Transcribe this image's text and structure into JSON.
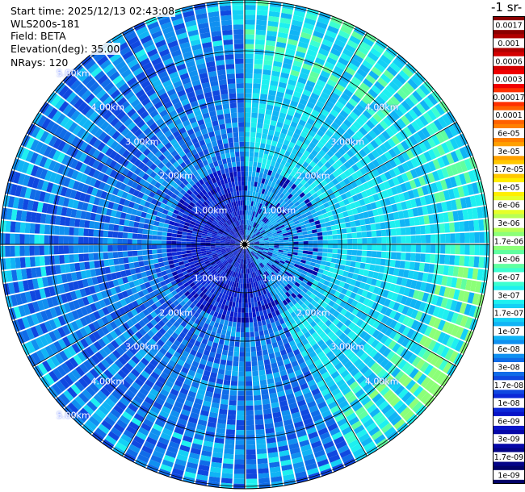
{
  "header": {
    "start_time": "Start time: 2025/12/13 02:43:08",
    "instrument": "WLS200s-181",
    "field": "Field: BETA",
    "elevation": "Elevation(deg): 35.00",
    "nrays": "NRays: 120"
  },
  "chart_data": {
    "type": "heatmap",
    "subtype": "polar-ppi",
    "range_rings_labels": [
      "1.00km",
      "2.00km",
      "3.00km",
      "4.00km",
      "5.00km"
    ],
    "range_rings_km": [
      1,
      2,
      3,
      4,
      5
    ],
    "max_range_km": 5.0,
    "n_rays": 120,
    "elevation_deg": 35.0,
    "colorbar": {
      "title": "-1 sr-",
      "ticks": [
        "0.0017",
        "0.001",
        "0.0006",
        "0.0003",
        "0.00017",
        "0.0001",
        "6e-05",
        "3e-05",
        "1.7e-05",
        "1e-05",
        "6e-06",
        "3e-06",
        "1.7e-06",
        "1e-06",
        "6e-07",
        "3e-07",
        "1.7e-07",
        "1e-07",
        "6e-08",
        "3e-08",
        "1.7e-08",
        "1e-08",
        "6e-09",
        "3e-09",
        "1.7e-09",
        "1e-09"
      ],
      "colors": [
        "#8b0000",
        "#b00000",
        "#d40000",
        "#f00000",
        "#ff3000",
        "#ff6000",
        "#ff8000",
        "#ffa000",
        "#ffc800",
        "#ffee00",
        "#e6ff2a",
        "#b8ff55",
        "#8cff78",
        "#60ffa0",
        "#3cffd0",
        "#1ef0f0",
        "#14d0f5",
        "#10b4f5",
        "#1090f0",
        "#106ce8",
        "#1048e0",
        "#0c28d8",
        "#0814c8",
        "#0608a8",
        "#040488",
        "#020268"
      ]
    },
    "regions": [
      {
        "sector": "east",
        "dominant_value": "1e-07 to 3e-07"
      },
      {
        "sector": "west",
        "dominant_value": "1.7e-08 to 6e-08"
      },
      {
        "sector": "near-center",
        "dominant_value": "1e-08"
      }
    ]
  }
}
